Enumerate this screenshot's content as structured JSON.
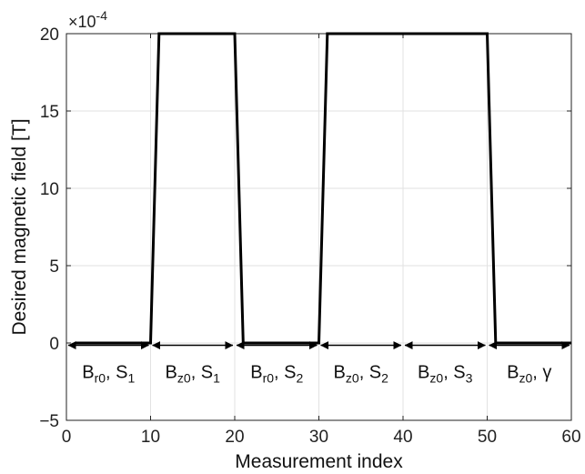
{
  "chart_data": {
    "type": "line",
    "xlabel": "Measurement index",
    "ylabel": "Desired magnetic field [T]",
    "xlim": [
      0,
      60
    ],
    "ylim": [
      -5,
      20
    ],
    "y_scale_exponent": "×10",
    "y_scale_power": "-4",
    "xticks": [
      "0",
      "10",
      "20",
      "30",
      "40",
      "50",
      "60"
    ],
    "yticks": [
      "-5",
      "0",
      "5",
      "10",
      "15",
      "20"
    ],
    "grid": true,
    "line_color": "#000000",
    "series": [
      {
        "x": [
          1,
          10,
          11,
          20,
          21,
          30,
          31,
          50,
          51,
          60
        ],
        "y": [
          0,
          0,
          20,
          20,
          0,
          0,
          20,
          20,
          0,
          0
        ]
      }
    ],
    "annotations": {
      "arrow_y": -0.15,
      "segments": [
        {
          "from": 0,
          "to": 10,
          "main": "B",
          "sub": "r0",
          "rest": ", S",
          "rest_sub": "1"
        },
        {
          "from": 10,
          "to": 20,
          "main": "B",
          "sub": "z0",
          "rest": ", S",
          "rest_sub": "1"
        },
        {
          "from": 20,
          "to": 30,
          "main": "B",
          "sub": "r0",
          "rest": ", S",
          "rest_sub": "2"
        },
        {
          "from": 30,
          "to": 40,
          "main": "B",
          "sub": "z0",
          "rest": ", S",
          "rest_sub": "2"
        },
        {
          "from": 40,
          "to": 50,
          "main": "B",
          "sub": "z0",
          "rest": ", S",
          "rest_sub": "3"
        },
        {
          "from": 50,
          "to": 60,
          "main": "B",
          "sub": "z0",
          "rest": ", γ",
          "rest_sub": ""
        }
      ]
    }
  }
}
